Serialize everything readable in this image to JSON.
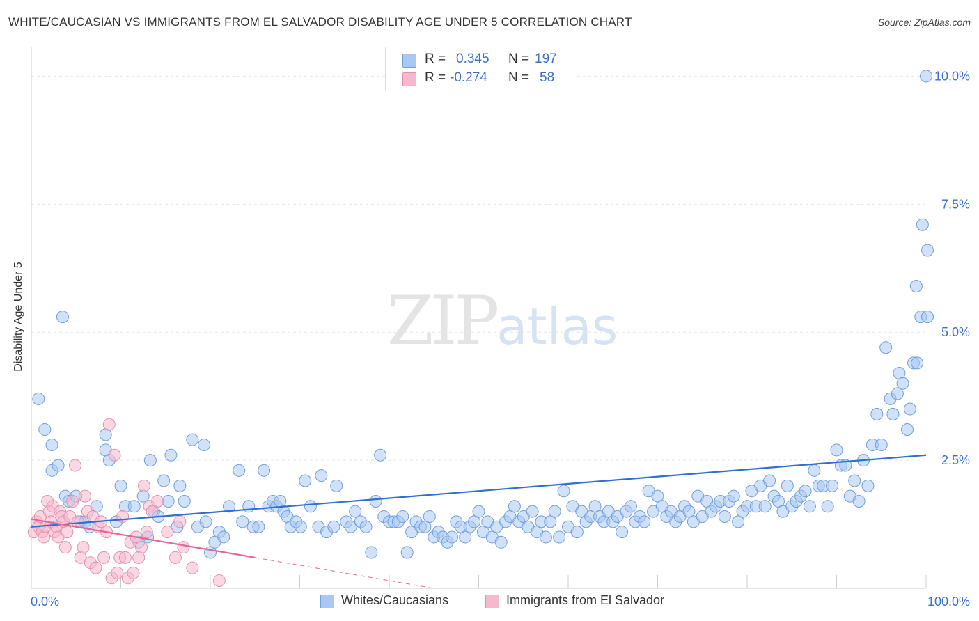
{
  "title": "WHITE/CAUCASIAN VS IMMIGRANTS FROM EL SALVADOR DISABILITY AGE UNDER 5 CORRELATION CHART",
  "source": "Source: ZipAtlas.com",
  "watermark": {
    "zip": "ZIP",
    "atlas": "atlas"
  },
  "legend_top": [
    {
      "r_label": "R =",
      "r_value": "0.345",
      "n_label": "N =",
      "n_value": "197",
      "color": "#a9c8f2"
    },
    {
      "r_label": "R =",
      "r_value": "-0.274",
      "n_label": "N =",
      "n_value": "58",
      "color": "#f5b8cc"
    }
  ],
  "colors": {
    "blue_fill": "#a9c8f2",
    "blue_stroke": "#6f9fdc",
    "blue_line": "#2e6fcf",
    "pink_fill": "#f5b8cc",
    "pink_stroke": "#e58fae",
    "pink_line": "#e0699a",
    "axis_text": "#3a6fcf"
  },
  "chart_data": {
    "type": "scatter",
    "title": "WHITE/CAUCASIAN VS IMMIGRANTS FROM EL SALVADOR DISABILITY AGE UNDER 5 CORRELATION CHART",
    "xlabel": "",
    "ylabel": "Disability Age Under 5",
    "xlim": [
      0,
      100
    ],
    "ylim": [
      0,
      10.4
    ],
    "x_tick_labels": [
      "0.0%",
      "100.0%"
    ],
    "y_ticks": [
      {
        "value": 2.5,
        "label": "2.5%"
      },
      {
        "value": 5.0,
        "label": "5.0%"
      },
      {
        "value": 7.5,
        "label": "7.5%"
      },
      {
        "value": 10.0,
        "label": "10.0%"
      }
    ],
    "legend_position": "bottom-center",
    "series": [
      {
        "name": "Whites/Caucasians",
        "r": 0.345,
        "n": 197,
        "trend": {
          "x1": 0,
          "y1": 1.2,
          "x2": 100,
          "y2": 2.6
        },
        "points": [
          [
            0.8,
            3.7
          ],
          [
            1.5,
            3.1
          ],
          [
            2.3,
            2.3
          ],
          [
            2.3,
            2.8
          ],
          [
            3,
            2.4
          ],
          [
            3.5,
            5.3
          ],
          [
            3.8,
            1.8
          ],
          [
            4.2,
            1.7
          ],
          [
            5,
            1.8
          ],
          [
            5.5,
            1.3
          ],
          [
            6,
            1.3
          ],
          [
            6.5,
            1.2
          ],
          [
            7.3,
            1.6
          ],
          [
            8.3,
            3.0
          ],
          [
            8.3,
            2.7
          ],
          [
            8.7,
            2.5
          ],
          [
            9.5,
            1.3
          ],
          [
            10,
            2.0
          ],
          [
            10.5,
            1.6
          ],
          [
            11.5,
            1.6
          ],
          [
            12,
            0.9
          ],
          [
            12.5,
            1.8
          ],
          [
            13,
            1.0
          ],
          [
            13.3,
            2.5
          ],
          [
            13.7,
            1.5
          ],
          [
            14.2,
            1.4
          ],
          [
            14.8,
            2.1
          ],
          [
            15.3,
            1.7
          ],
          [
            15.6,
            2.6
          ],
          [
            16.3,
            1.2
          ],
          [
            16.6,
            2.0
          ],
          [
            17.1,
            1.7
          ],
          [
            18,
            2.9
          ],
          [
            19.3,
            2.8
          ],
          [
            18.6,
            1.2
          ],
          [
            19.5,
            1.3
          ],
          [
            20,
            0.7
          ],
          [
            20.5,
            0.9
          ],
          [
            21,
            1.1
          ],
          [
            21.5,
            1.0
          ],
          [
            22.1,
            1.6
          ],
          [
            23.2,
            2.3
          ],
          [
            23.6,
            1.3
          ],
          [
            24.3,
            1.6
          ],
          [
            24.8,
            1.2
          ],
          [
            25.4,
            1.2
          ],
          [
            26,
            2.3
          ],
          [
            26.5,
            1.6
          ],
          [
            27,
            1.7
          ],
          [
            27.4,
            1.6
          ],
          [
            27.8,
            1.7
          ],
          [
            28.2,
            1.5
          ],
          [
            28.6,
            1.4
          ],
          [
            29,
            1.2
          ],
          [
            29.6,
            1.3
          ],
          [
            30.1,
            1.2
          ],
          [
            30.6,
            2.1
          ],
          [
            31.2,
            1.6
          ],
          [
            32.1,
            1.2
          ],
          [
            32.4,
            2.2
          ],
          [
            33,
            1.1
          ],
          [
            33.8,
            1.2
          ],
          [
            34.1,
            2.0
          ],
          [
            35.2,
            1.3
          ],
          [
            35.7,
            1.2
          ],
          [
            36.2,
            1.5
          ],
          [
            36.8,
            1.3
          ],
          [
            37.4,
            1.2
          ],
          [
            38,
            0.7
          ],
          [
            38.5,
            1.7
          ],
          [
            39,
            2.6
          ],
          [
            39.4,
            1.4
          ],
          [
            40,
            1.3
          ],
          [
            40.5,
            1.3
          ],
          [
            41,
            1.3
          ],
          [
            41.5,
            1.4
          ],
          [
            42,
            0.7
          ],
          [
            42.5,
            1.1
          ],
          [
            43,
            1.3
          ],
          [
            43.5,
            1.2
          ],
          [
            44,
            1.2
          ],
          [
            44.5,
            1.4
          ],
          [
            45,
            1.0
          ],
          [
            45.5,
            1.1
          ],
          [
            46,
            1.0
          ],
          [
            46.5,
            0.9
          ],
          [
            47,
            1.0
          ],
          [
            47.5,
            1.3
          ],
          [
            48,
            1.2
          ],
          [
            48.5,
            1.0
          ],
          [
            49,
            1.2
          ],
          [
            49.5,
            1.3
          ],
          [
            50,
            1.5
          ],
          [
            50.5,
            1.1
          ],
          [
            51,
            1.3
          ],
          [
            51.5,
            1.0
          ],
          [
            52,
            1.2
          ],
          [
            52.5,
            0.9
          ],
          [
            53,
            1.3
          ],
          [
            53.5,
            1.4
          ],
          [
            54,
            1.6
          ],
          [
            54.5,
            1.3
          ],
          [
            55,
            1.4
          ],
          [
            55.5,
            1.2
          ],
          [
            56,
            1.5
          ],
          [
            56.5,
            1.1
          ],
          [
            57,
            1.3
          ],
          [
            57.5,
            1.0
          ],
          [
            58,
            1.3
          ],
          [
            58.5,
            1.5
          ],
          [
            59,
            1.0
          ],
          [
            59.5,
            1.9
          ],
          [
            60,
            1.2
          ],
          [
            60.5,
            1.6
          ],
          [
            61,
            1.1
          ],
          [
            61.5,
            1.5
          ],
          [
            62,
            1.3
          ],
          [
            62.5,
            1.4
          ],
          [
            63,
            1.6
          ],
          [
            63.5,
            1.4
          ],
          [
            64,
            1.3
          ],
          [
            64.5,
            1.5
          ],
          [
            65,
            1.3
          ],
          [
            65.5,
            1.4
          ],
          [
            66,
            1.1
          ],
          [
            66.5,
            1.5
          ],
          [
            67,
            1.6
          ],
          [
            67.5,
            1.3
          ],
          [
            68,
            1.4
          ],
          [
            68.5,
            1.3
          ],
          [
            69,
            1.9
          ],
          [
            69.5,
            1.5
          ],
          [
            70,
            1.8
          ],
          [
            70.5,
            1.6
          ],
          [
            71,
            1.4
          ],
          [
            71.5,
            1.5
          ],
          [
            72,
            1.3
          ],
          [
            72.5,
            1.4
          ],
          [
            73,
            1.6
          ],
          [
            73.5,
            1.5
          ],
          [
            74,
            1.3
          ],
          [
            74.5,
            1.8
          ],
          [
            75,
            1.4
          ],
          [
            75.5,
            1.7
          ],
          [
            76,
            1.5
          ],
          [
            76.5,
            1.6
          ],
          [
            77,
            1.7
          ],
          [
            77.5,
            1.4
          ],
          [
            78,
            1.7
          ],
          [
            78.5,
            1.8
          ],
          [
            79,
            1.3
          ],
          [
            79.5,
            1.5
          ],
          [
            80,
            1.6
          ],
          [
            80.5,
            1.9
          ],
          [
            81,
            1.6
          ],
          [
            81.5,
            2.0
          ],
          [
            82,
            1.6
          ],
          [
            82.5,
            2.1
          ],
          [
            83,
            1.8
          ],
          [
            83.5,
            1.7
          ],
          [
            84,
            1.5
          ],
          [
            84.5,
            2.0
          ],
          [
            85,
            1.6
          ],
          [
            85.5,
            1.7
          ],
          [
            86,
            1.8
          ],
          [
            86.5,
            1.9
          ],
          [
            87,
            1.6
          ],
          [
            87.5,
            2.3
          ],
          [
            88,
            2.0
          ],
          [
            88.5,
            2.0
          ],
          [
            89,
            1.6
          ],
          [
            89.5,
            2.0
          ],
          [
            90,
            2.7
          ],
          [
            90.5,
            2.4
          ],
          [
            91,
            2.4
          ],
          [
            91.5,
            1.8
          ],
          [
            92,
            2.1
          ],
          [
            92.5,
            1.7
          ],
          [
            93,
            2.5
          ],
          [
            93.5,
            2.0
          ],
          [
            94,
            2.8
          ],
          [
            94.5,
            3.4
          ],
          [
            95,
            2.8
          ],
          [
            95.5,
            4.7
          ],
          [
            96,
            3.7
          ],
          [
            96.3,
            3.4
          ],
          [
            96.8,
            3.8
          ],
          [
            97,
            4.2
          ],
          [
            97.4,
            4.0
          ],
          [
            97.9,
            3.1
          ],
          [
            98.2,
            3.5
          ],
          [
            98.6,
            4.4
          ],
          [
            99,
            4.4
          ],
          [
            99.4,
            5.3
          ],
          [
            100,
            10.0
          ],
          [
            98.9,
            5.9
          ],
          [
            99.6,
            7.1
          ],
          [
            100.2,
            5.3
          ],
          [
            100.6,
            6.6
          ]
        ]
      },
      {
        "name": "Immigrants from El Salvador",
        "r": -0.274,
        "n": 58,
        "trend": {
          "x1": 0,
          "y1": 1.35,
          "x2": 25,
          "y2": 0.6,
          "dash_to_x": 45,
          "dash_to_y": 0.0
        },
        "points": [
          [
            0.3,
            1.1
          ],
          [
            0.6,
            1.3
          ],
          [
            0.8,
            1.2
          ],
          [
            1,
            1.4
          ],
          [
            1.2,
            1.1
          ],
          [
            1.4,
            1.0
          ],
          [
            1.6,
            1.2
          ],
          [
            1.8,
            1.7
          ],
          [
            2,
            1.5
          ],
          [
            2.2,
            1.3
          ],
          [
            2.4,
            1.6
          ],
          [
            2.6,
            1.1
          ],
          [
            2.8,
            1.2
          ],
          [
            3,
            1.0
          ],
          [
            3.2,
            1.5
          ],
          [
            3.4,
            1.4
          ],
          [
            3.6,
            1.3
          ],
          [
            3.8,
            0.8
          ],
          [
            4,
            1.1
          ],
          [
            4.3,
            1.4
          ],
          [
            4.6,
            1.7
          ],
          [
            4.9,
            2.4
          ],
          [
            5.2,
            1.3
          ],
          [
            5.5,
            0.6
          ],
          [
            5.8,
            0.8
          ],
          [
            6,
            1.8
          ],
          [
            6.3,
            1.5
          ],
          [
            6.6,
            0.5
          ],
          [
            6.9,
            1.4
          ],
          [
            7.2,
            0.4
          ],
          [
            7.5,
            1.2
          ],
          [
            7.8,
            1.3
          ],
          [
            8.1,
            0.6
          ],
          [
            8.4,
            1.1
          ],
          [
            8.7,
            3.2
          ],
          [
            9,
            0.2
          ],
          [
            9.3,
            2.6
          ],
          [
            9.6,
            0.3
          ],
          [
            9.9,
            0.6
          ],
          [
            10.2,
            1.4
          ],
          [
            10.5,
            0.6
          ],
          [
            10.8,
            0.2
          ],
          [
            11.1,
            0.9
          ],
          [
            11.4,
            0.3
          ],
          [
            11.7,
            1.0
          ],
          [
            12,
            0.6
          ],
          [
            12.3,
            0.8
          ],
          [
            12.6,
            2.0
          ],
          [
            12.9,
            1.1
          ],
          [
            13.2,
            1.6
          ],
          [
            13.5,
            1.5
          ],
          [
            14.1,
            1.7
          ],
          [
            15.2,
            1.1
          ],
          [
            16.1,
            0.6
          ],
          [
            16.6,
            1.3
          ],
          [
            17,
            0.8
          ],
          [
            18,
            0.4
          ],
          [
            21,
            0.15
          ]
        ]
      }
    ]
  }
}
